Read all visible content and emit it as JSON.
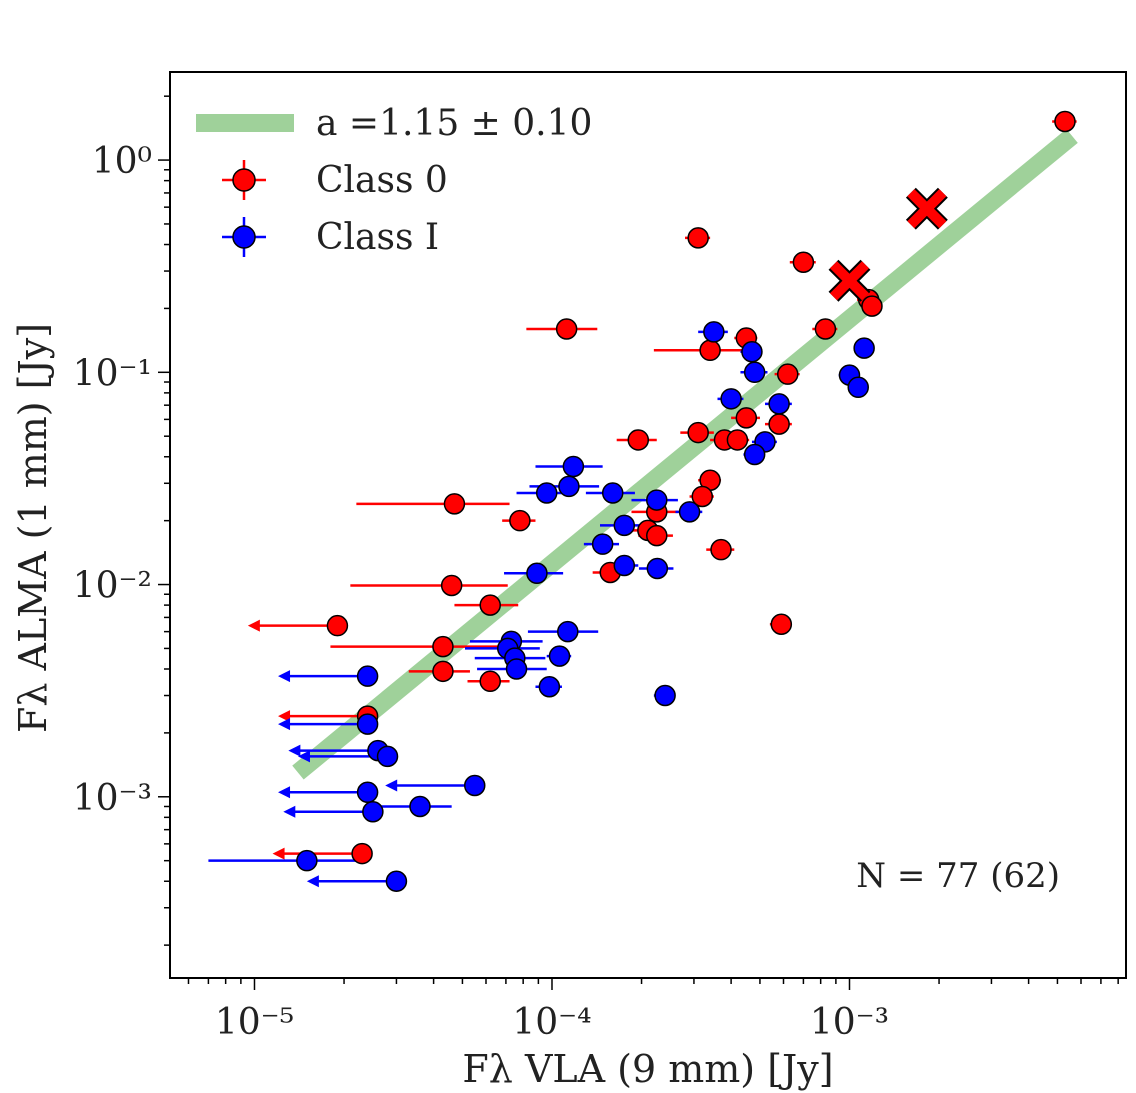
{
  "chart_data": {
    "type": "scatter",
    "xscale": "log",
    "yscale": "log",
    "xlim": [
      5.2e-06,
      0.0085
    ],
    "ylim": [
      0.00014,
      2.6
    ],
    "xlabel": "Fλ VLA (9 mm) [Jy]",
    "ylabel": "Fλ ALMA (1 mm) [Jy]",
    "xticks": [
      {
        "value": 1e-05,
        "label": "10⁻⁵"
      },
      {
        "value": 0.0001,
        "label": "10⁻⁴"
      },
      {
        "value": 0.001,
        "label": "10⁻³"
      }
    ],
    "yticks": [
      {
        "value": 0.001,
        "label": "10⁻³"
      },
      {
        "value": 0.01,
        "label": "10⁻²"
      },
      {
        "value": 0.1,
        "label": "10⁻¹"
      },
      {
        "value": 1,
        "label": "10⁰"
      }
    ],
    "fit": {
      "label": "a =1.15 ± 0.10",
      "color": "#9fd19a",
      "x": [
        1.4e-05,
        0.0056
      ],
      "y": [
        0.0013,
        1.3
      ]
    },
    "annotation": "N = 77 (62)",
    "legend_position": "top-left",
    "series": [
      {
        "name": "Class 0",
        "color": "#ff0000",
        "points": [
          [
            0.0053,
            1.52,
            0.0005,
            0
          ],
          [
            0.00031,
            0.43,
            3e-05,
            0
          ],
          [
            0.0007,
            0.33,
            7e-05,
            0
          ],
          [
            0.00116,
            0.22,
            0.0001,
            0
          ],
          [
            0.00119,
            0.205,
            0.0001,
            0
          ],
          [
            0.000112,
            0.16,
            3e-05,
            0
          ],
          [
            0.00083,
            0.16,
            8e-05,
            0
          ],
          [
            0.00045,
            0.145,
            4e-05,
            0
          ],
          [
            0.00034,
            0.127,
            0.00012,
            0
          ],
          [
            0.00062,
            0.098,
            6e-05,
            0
          ],
          [
            0.00045,
            0.061,
            5e-05,
            0
          ],
          [
            0.00058,
            0.057,
            6e-05,
            0
          ],
          [
            0.00031,
            0.052,
            4e-05,
            0
          ],
          [
            0.000195,
            0.048,
            3e-05,
            0
          ],
          [
            0.00038,
            0.048,
            4e-05,
            0
          ],
          [
            0.00042,
            0.048,
            4e-05,
            0
          ],
          [
            0.00034,
            0.031,
            3e-05,
            0
          ],
          [
            0.00032,
            0.026,
            3e-05,
            0
          ],
          [
            4.7e-05,
            0.024,
            2.5e-05,
            0
          ],
          [
            0.000225,
            0.022,
            4e-05,
            0
          ],
          [
            7.8e-05,
            0.02,
            1e-05,
            0
          ],
          [
            0.00021,
            0.018,
            3e-05,
            0
          ],
          [
            0.000225,
            0.017,
            3e-05,
            0
          ],
          [
            0.00037,
            0.0146,
            4e-05,
            0
          ],
          [
            0.000157,
            0.0114,
            2e-05,
            0
          ],
          [
            4.6e-05,
            0.0099,
            2.5e-05,
            0
          ],
          [
            6.2e-05,
            0.008,
            1.5e-05,
            0
          ],
          [
            1.9e-05,
            0.0064,
            1e-05,
            1
          ],
          [
            0.00059,
            0.0065,
            5e-05,
            0
          ],
          [
            4.3e-05,
            0.0051,
            2.5e-05,
            0
          ],
          [
            4.3e-05,
            0.0039,
            1e-05,
            0
          ],
          [
            6.2e-05,
            0.0035,
            1e-05,
            0
          ],
          [
            2.4e-05,
            0.0024,
            9e-06,
            1
          ],
          [
            2.3e-05,
            0.00054,
            8e-06,
            1
          ]
        ]
      },
      {
        "name": "Class I",
        "color": "#0000ff",
        "points": [
          [
            0.00035,
            0.155,
            4e-05,
            0
          ],
          [
            0.00112,
            0.13,
            8e-05,
            0
          ],
          [
            0.00047,
            0.125,
            4e-05,
            0
          ],
          [
            0.00048,
            0.1,
            5e-05,
            0
          ],
          [
            0.001,
            0.097,
            8e-05,
            0
          ],
          [
            0.00107,
            0.085,
            8e-05,
            0
          ],
          [
            0.0004,
            0.075,
            4e-05,
            0
          ],
          [
            0.00058,
            0.071,
            6e-05,
            0
          ],
          [
            0.00052,
            0.047,
            5e-05,
            0
          ],
          [
            0.00048,
            0.041,
            4e-05,
            0
          ],
          [
            0.000118,
            0.036,
            3e-05,
            0
          ],
          [
            0.000114,
            0.029,
            3e-05,
            0
          ],
          [
            9.6e-05,
            0.027,
            2e-05,
            0
          ],
          [
            0.00016,
            0.027,
            3e-05,
            0
          ],
          [
            0.000225,
            0.025,
            4e-05,
            0
          ],
          [
            0.00029,
            0.022,
            3e-05,
            0
          ],
          [
            0.000175,
            0.019,
            3e-05,
            0
          ],
          [
            0.000148,
            0.0155,
            2e-05,
            0
          ],
          [
            0.000175,
            0.0123,
            2e-05,
            0
          ],
          [
            0.000226,
            0.0119,
            3e-05,
            0
          ],
          [
            8.9e-05,
            0.0113,
            2e-05,
            0
          ],
          [
            0.000113,
            0.006,
            3e-05,
            0
          ],
          [
            7.3e-05,
            0.0054,
            2e-05,
            0
          ],
          [
            7.1e-05,
            0.005,
            2e-05,
            0
          ],
          [
            7.5e-05,
            0.0045,
            2e-05,
            0
          ],
          [
            0.000106,
            0.0046,
            1e-05,
            0
          ],
          [
            7.6e-05,
            0.004,
            2e-05,
            0
          ],
          [
            2.4e-05,
            0.0037,
            1e-05,
            1
          ],
          [
            9.8e-05,
            0.0033,
            1e-05,
            0
          ],
          [
            0.00024,
            0.003,
            2e-05,
            0
          ],
          [
            2.4e-05,
            0.0022,
            1e-05,
            1
          ],
          [
            2.6e-05,
            0.00165,
            1e-05,
            1
          ],
          [
            2.8e-05,
            0.00155,
            1e-05,
            1
          ],
          [
            5.5e-05,
            0.00113,
            1e-05,
            1
          ],
          [
            2.4e-05,
            0.00105,
            1e-05,
            1
          ],
          [
            3.6e-05,
            0.0009,
            1e-05,
            0
          ],
          [
            2.5e-05,
            0.00085,
            1e-05,
            1
          ],
          [
            1.5e-05,
            0.0005,
            8e-06,
            0
          ],
          [
            3e-05,
            0.0004,
            1e-05,
            1
          ]
        ]
      }
    ],
    "highlight_markers": {
      "marker": "X",
      "color": "#ff0000",
      "points": [
        [
          0.00182,
          0.59
        ],
        [
          0.001,
          0.27
        ]
      ]
    }
  }
}
